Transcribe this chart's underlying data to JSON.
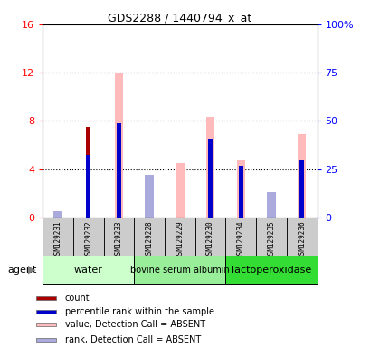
{
  "title": "GDS2288 / 1440794_x_at",
  "samples": [
    "GSM129231",
    "GSM129232",
    "GSM129233",
    "GSM129228",
    "GSM129229",
    "GSM129230",
    "GSM129234",
    "GSM129235",
    "GSM129236"
  ],
  "groups": [
    {
      "label": "water",
      "samples": [
        0,
        1,
        2
      ],
      "color": "#ccffcc"
    },
    {
      "label": "bovine serum albumin",
      "samples": [
        3,
        4,
        5
      ],
      "color": "#99ee99"
    },
    {
      "label": "lactoperoxidase",
      "samples": [
        6,
        7,
        8
      ],
      "color": "#33dd33"
    }
  ],
  "count_values": [
    0.0,
    7.5,
    0.0,
    0.0,
    0.0,
    0.0,
    0.0,
    0.0,
    0.0
  ],
  "percentile_values": [
    0.0,
    5.2,
    7.8,
    0.0,
    0.0,
    6.5,
    4.3,
    0.0,
    4.8
  ],
  "absent_value_values": [
    0.0,
    0.0,
    12.0,
    3.1,
    4.5,
    8.3,
    4.7,
    1.1,
    6.9
  ],
  "absent_rank_values": [
    0.5,
    0.0,
    0.0,
    3.5,
    0.0,
    0.0,
    0.0,
    2.1,
    0.0
  ],
  "ylim_left": [
    0,
    16
  ],
  "ylim_right": [
    0,
    100
  ],
  "yticks_left": [
    0,
    4,
    8,
    12,
    16
  ],
  "yticks_right": [
    0,
    25,
    50,
    75,
    100
  ],
  "ytick_labels_right": [
    "0",
    "25",
    "50",
    "75",
    "100%"
  ],
  "ytick_labels_left": [
    "0",
    "4",
    "8",
    "12",
    "16"
  ],
  "color_count": "#aa0000",
  "color_percentile": "#0000cc",
  "color_absent_value": "#ffbbbb",
  "color_absent_rank": "#aaaadd",
  "legend_items": [
    {
      "color": "#aa0000",
      "label": "count"
    },
    {
      "color": "#0000cc",
      "label": "percentile rank within the sample"
    },
    {
      "color": "#ffbbbb",
      "label": "value, Detection Call = ABSENT"
    },
    {
      "color": "#aaaadd",
      "label": "rank, Detection Call = ABSENT"
    }
  ],
  "agent_label": "agent",
  "bg_color_samples": "#cccccc"
}
